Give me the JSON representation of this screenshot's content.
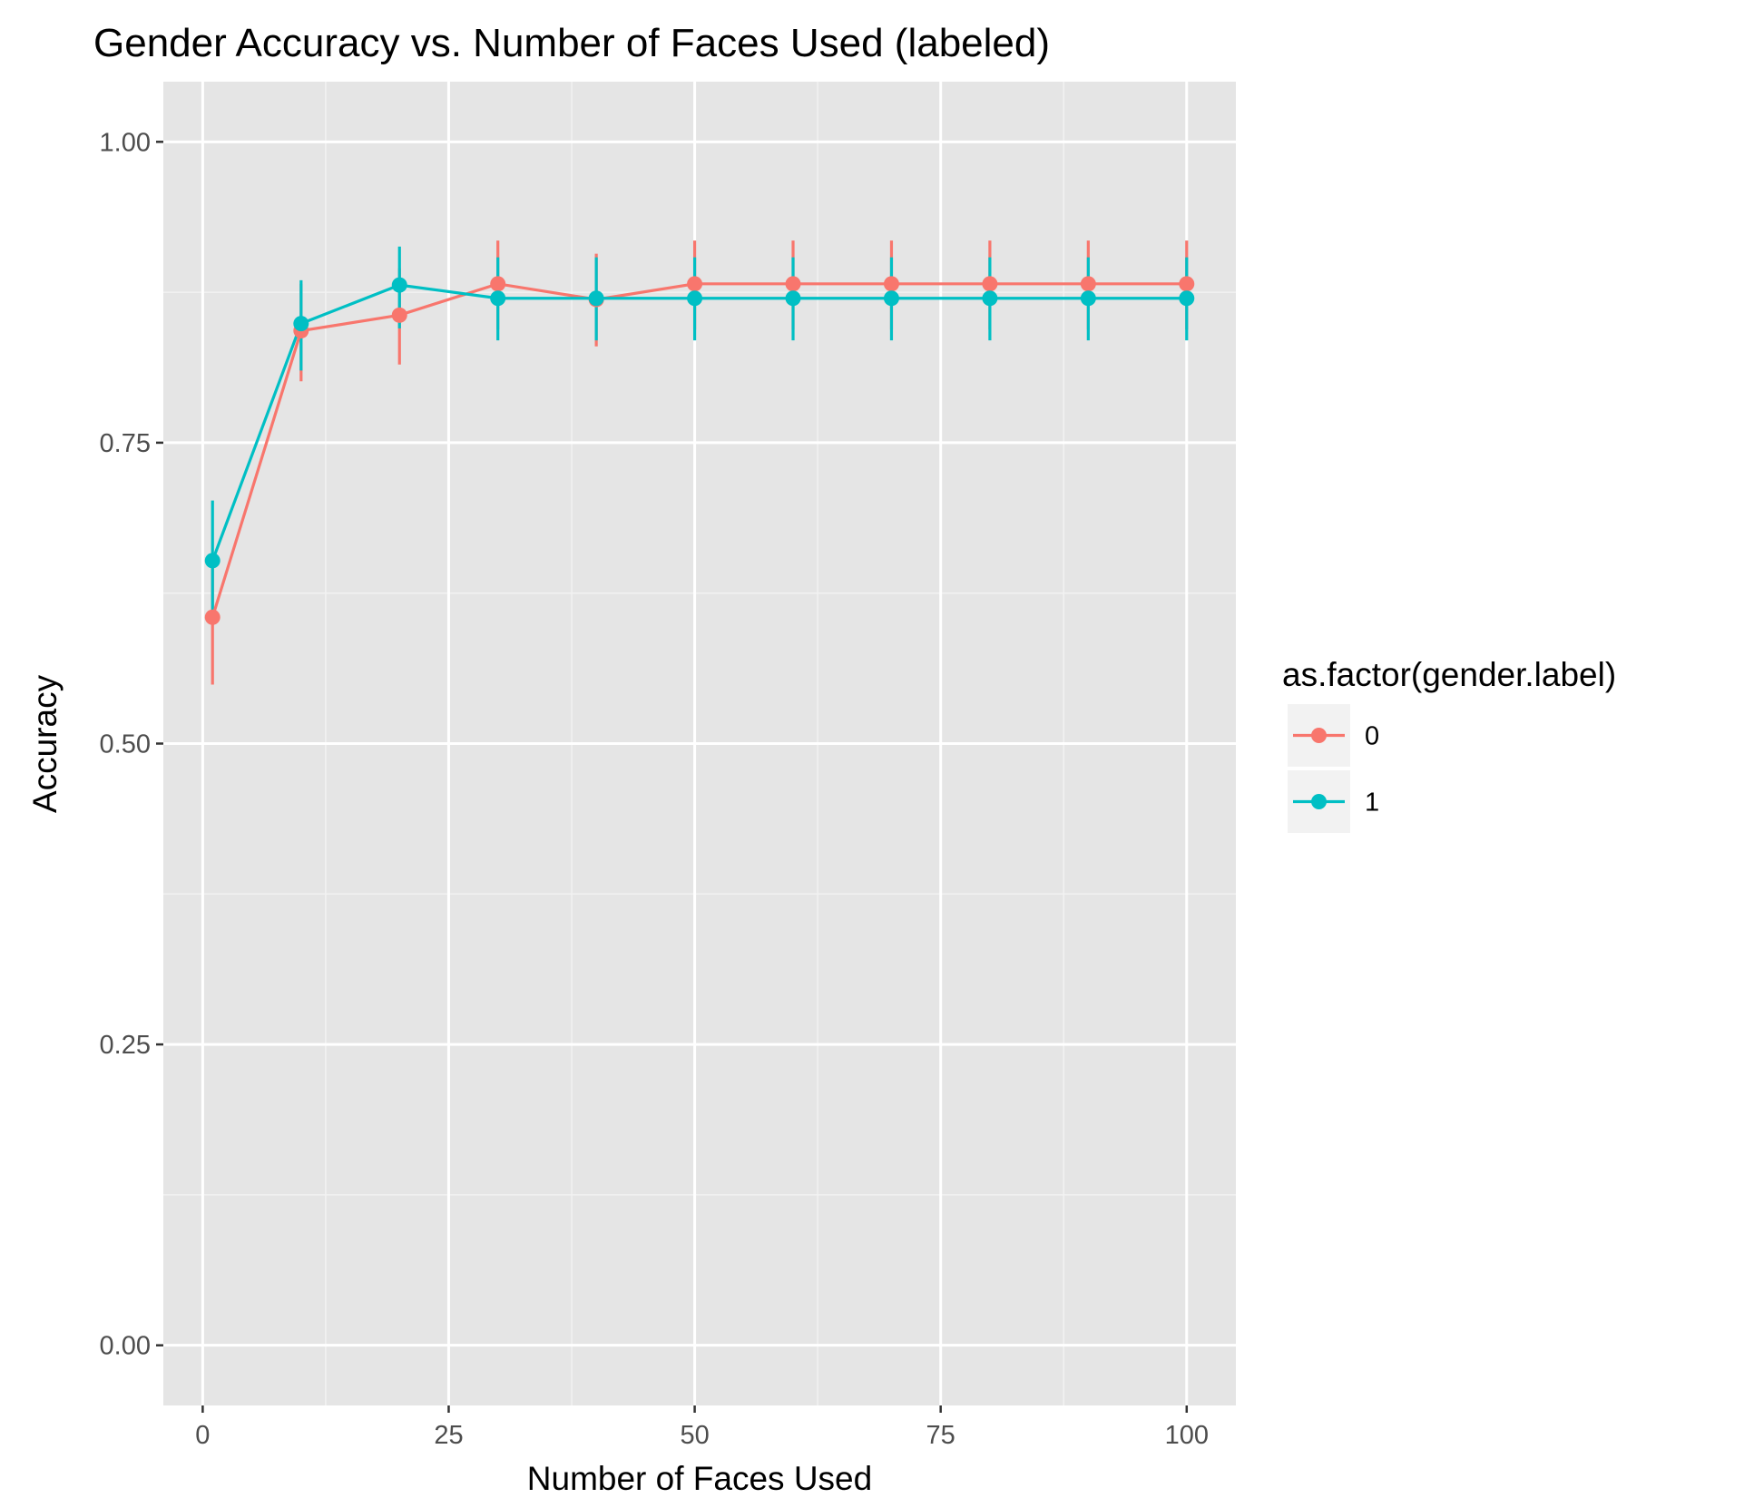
{
  "chart_data": {
    "type": "line",
    "title": "Gender Accuracy vs. Number of Faces Used (labeled)",
    "xlabel": "Number of Faces Used",
    "ylabel": "Accuracy",
    "xlim": [
      -4,
      105
    ],
    "ylim": [
      -0.05,
      1.05
    ],
    "x_ticks": [
      0,
      25,
      50,
      75,
      100
    ],
    "x_tick_labels": [
      "0",
      "25",
      "50",
      "75",
      "100"
    ],
    "y_ticks": [
      0,
      0.25,
      0.5,
      0.75,
      1.0
    ],
    "y_tick_labels": [
      "0.00",
      "0.25",
      "0.50",
      "0.75",
      "1.00"
    ],
    "grid": true,
    "legend_position": "right",
    "legend_title": "as.factor(gender.label)",
    "x": [
      1,
      10,
      20,
      30,
      40,
      50,
      60,
      70,
      80,
      90,
      100
    ],
    "series": [
      {
        "name": "0",
        "color": "#F8766D",
        "values": [
          0.605,
          0.843,
          0.856,
          0.882,
          0.869,
          0.882,
          0.882,
          0.882,
          0.882,
          0.882,
          0.882
        ],
        "error_low": [
          0.549,
          0.801,
          0.815,
          0.844,
          0.83,
          0.844,
          0.844,
          0.844,
          0.844,
          0.844,
          0.844
        ],
        "error_high": [
          0.658,
          0.882,
          0.895,
          0.918,
          0.907,
          0.918,
          0.918,
          0.918,
          0.918,
          0.918,
          0.918
        ]
      },
      {
        "name": "1",
        "color": "#00BFC4",
        "values": [
          0.652,
          0.849,
          0.881,
          0.87,
          0.87,
          0.87,
          0.87,
          0.87,
          0.87,
          0.87,
          0.87
        ],
        "error_low": [
          0.604,
          0.81,
          0.845,
          0.835,
          0.835,
          0.835,
          0.835,
          0.835,
          0.835,
          0.835,
          0.835
        ],
        "error_high": [
          0.702,
          0.885,
          0.913,
          0.904,
          0.904,
          0.904,
          0.904,
          0.904,
          0.904,
          0.904,
          0.904
        ]
      }
    ]
  }
}
